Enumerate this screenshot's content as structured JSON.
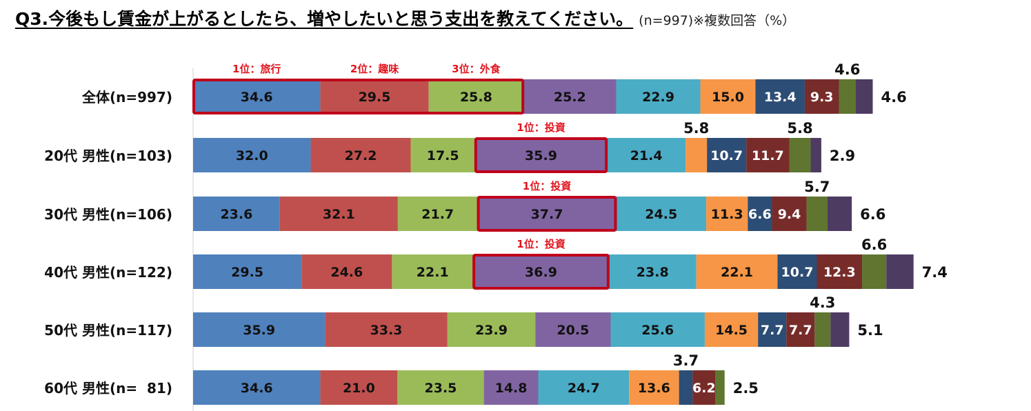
{
  "title": {
    "main": "Q3.今後もし賃金が上がるとしたら、増やしたいと思う支出を教えてください。",
    "note": "(n=997)※複数回答（%）"
  },
  "chart_data": {
    "type": "bar",
    "orientation": "horizontal",
    "stacked": true,
    "categories": [
      "全体(n=997)",
      "20代 男性(n=103)",
      "30代 男性(n=106)",
      "40代 男性(n=122)",
      "50代 男性(n=117)",
      "60代 男性(n=  81)"
    ],
    "series": [
      {
        "color": "#4f81bd",
        "values": [
          34.6,
          32.0,
          23.6,
          29.5,
          35.9,
          34.6
        ]
      },
      {
        "color": "#c0504d",
        "values": [
          29.5,
          27.2,
          32.1,
          24.6,
          33.3,
          21.0
        ]
      },
      {
        "color": "#9bbb59",
        "values": [
          25.8,
          17.5,
          21.7,
          22.1,
          23.9,
          23.5
        ]
      },
      {
        "color": "#8064a2",
        "values": [
          25.2,
          35.9,
          37.7,
          36.9,
          20.5,
          14.8
        ]
      },
      {
        "color": "#4bacc6",
        "values": [
          22.9,
          21.4,
          24.5,
          23.8,
          25.6,
          24.7
        ]
      },
      {
        "color": "#f79646",
        "values": [
          15.0,
          5.8,
          11.3,
          22.1,
          14.5,
          13.6
        ]
      },
      {
        "color": "#2c4d75",
        "values": [
          13.4,
          10.7,
          6.6,
          10.7,
          7.7,
          3.7
        ]
      },
      {
        "color": "#772c2a",
        "values": [
          9.3,
          11.7,
          9.4,
          12.3,
          7.7,
          6.2
        ]
      },
      {
        "color": "#5f7530",
        "values": [
          4.6,
          5.8,
          5.7,
          6.6,
          4.3,
          2.5
        ]
      },
      {
        "color": "#4d3b62",
        "values": [
          4.6,
          2.9,
          6.6,
          7.4,
          5.1,
          0
        ]
      }
    ],
    "outside_labels": [
      {
        "row": 0,
        "series": 8,
        "text": "4.6",
        "pos": "above"
      },
      {
        "row": 0,
        "series": 9,
        "text": "4.6",
        "pos": "right"
      },
      {
        "row": 1,
        "series": 5,
        "text": "5.8",
        "pos": "above"
      },
      {
        "row": 1,
        "series": 8,
        "text": "5.8",
        "pos": "above"
      },
      {
        "row": 1,
        "series": 9,
        "text": "2.9",
        "pos": "right"
      },
      {
        "row": 2,
        "series": 8,
        "text": "5.7",
        "pos": "above"
      },
      {
        "row": 2,
        "series": 9,
        "text": "6.6",
        "pos": "right"
      },
      {
        "row": 3,
        "series": 8,
        "text": "6.6",
        "pos": "above"
      },
      {
        "row": 3,
        "series": 9,
        "text": "7.4",
        "pos": "right"
      },
      {
        "row": 4,
        "series": 8,
        "text": "4.3",
        "pos": "above"
      },
      {
        "row": 4,
        "series": 9,
        "text": "5.1",
        "pos": "right"
      },
      {
        "row": 5,
        "series": 6,
        "text": "3.7",
        "pos": "above"
      },
      {
        "row": 5,
        "series": 8,
        "text": "2.5",
        "pos": "right"
      }
    ],
    "rank_annotations": [
      {
        "row": 0,
        "series": 0,
        "text": "1位：旅行"
      },
      {
        "row": 0,
        "series": 1,
        "text": "2位：趣味"
      },
      {
        "row": 0,
        "series": 2,
        "text": "3位：外食"
      },
      {
        "row": 1,
        "series": 3,
        "text": "1位：投資"
      },
      {
        "row": 2,
        "series": 3,
        "text": "1位：投資"
      },
      {
        "row": 3,
        "series": 3,
        "text": "1位：投資"
      }
    ],
    "highlight_boxes": [
      {
        "row": 0,
        "from_series": 0,
        "to_series": 2
      },
      {
        "row": 1,
        "from_series": 3,
        "to_series": 3
      },
      {
        "row": 2,
        "from_series": 3,
        "to_series": 3
      },
      {
        "row": 3,
        "from_series": 3,
        "to_series": 3
      }
    ],
    "highlight_color": "#c0001a"
  }
}
